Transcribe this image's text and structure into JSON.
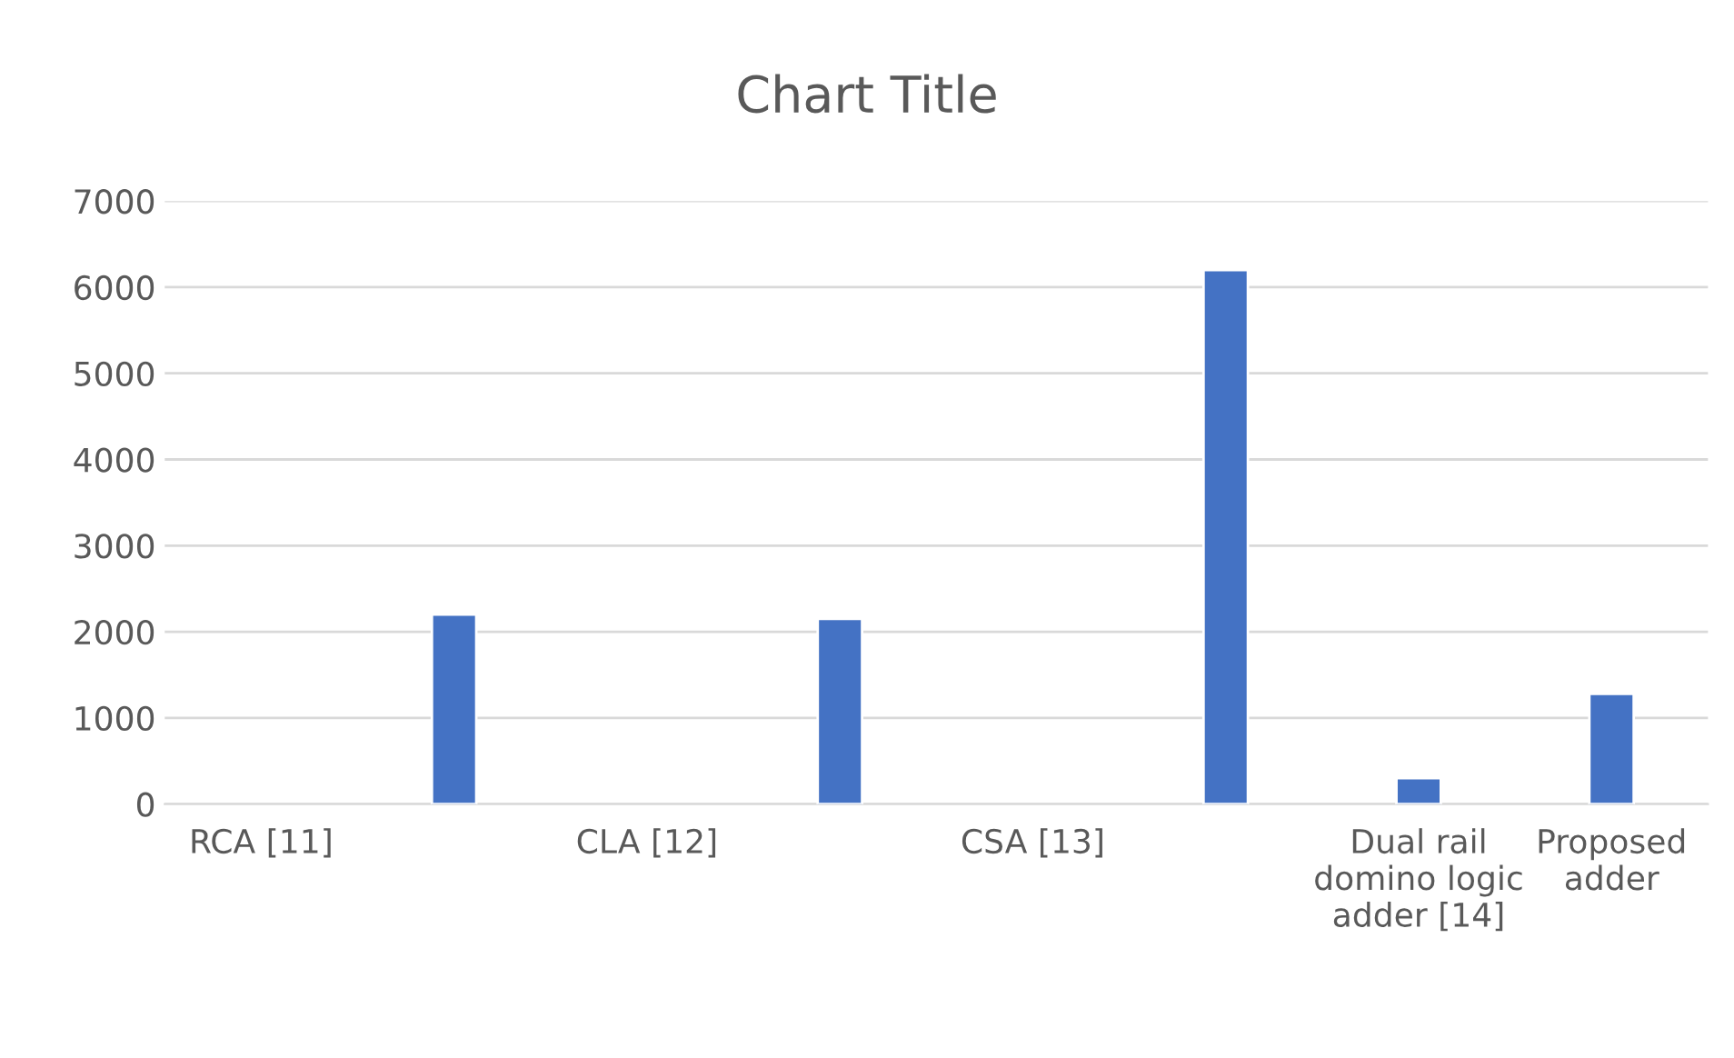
{
  "chart_data": {
    "type": "bar",
    "title": "Chart Title",
    "categories": [
      "RCA [11]",
      null,
      "CLA [12]",
      null,
      "CSA [13]",
      null,
      "Dual rail domino logic adder [14]",
      "Proposed adder"
    ],
    "values": [
      null,
      2200,
      null,
      2150,
      null,
      6200,
      300,
      1280
    ],
    "color": "#4472c4",
    "ylim": [
      0,
      7000
    ],
    "yticks": [
      0,
      1000,
      2000,
      3000,
      4000,
      5000,
      6000,
      7000
    ],
    "grid": "y"
  }
}
